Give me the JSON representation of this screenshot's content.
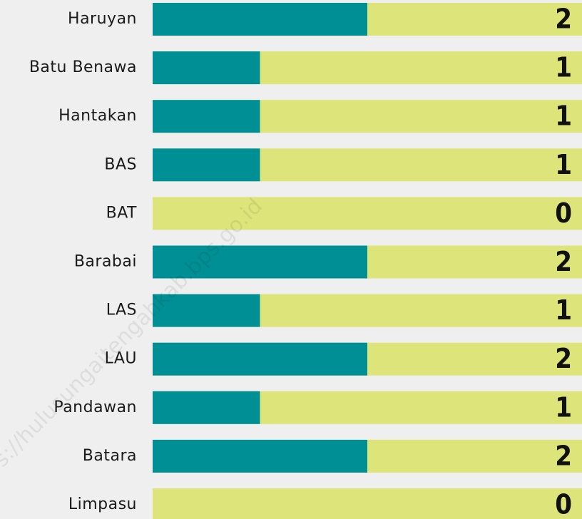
{
  "chart_data": {
    "type": "bar",
    "orientation": "horizontal",
    "categories": [
      "Haruyan",
      "Batu Benawa",
      "Hantakan",
      "BAS",
      "BAT",
      "Barabai",
      "LAS",
      "LAU",
      "Pandawan",
      "Batara",
      "Limpasu"
    ],
    "values": [
      2,
      1,
      1,
      1,
      0,
      2,
      1,
      2,
      1,
      2,
      0
    ],
    "color": "#008f94",
    "track_color": "#dde57a",
    "xlim": [
      0,
      4
    ],
    "watermark": "https://hulusungaitengahkab.bps.go.id"
  }
}
